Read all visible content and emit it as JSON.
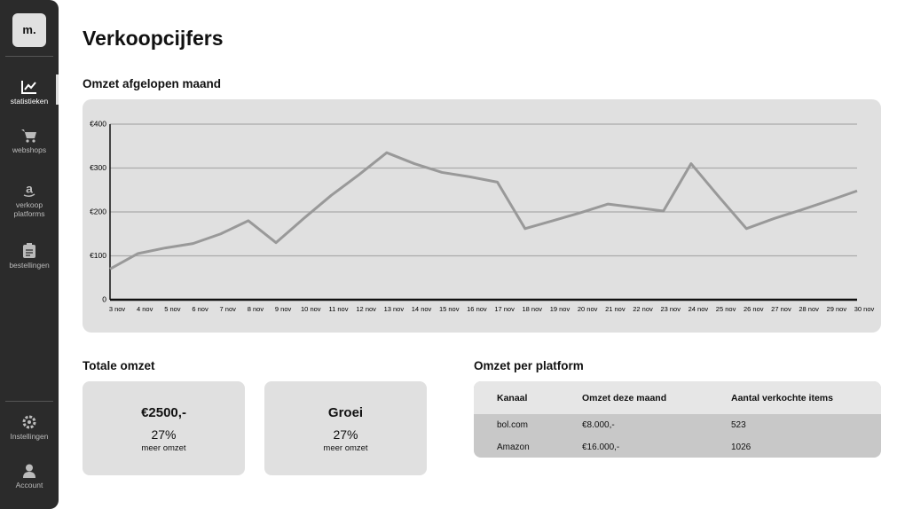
{
  "sidebar": {
    "logo": "m.",
    "nav": [
      "statistieken",
      "webshops",
      "verkoop platforms",
      "bestellingen"
    ],
    "bottom": [
      "Instellingen",
      "Account"
    ]
  },
  "header": {
    "title": "Verkoopcijfers"
  },
  "chart_heading": "Omzet afgelopen maand",
  "chart_data": {
    "type": "line",
    "categories": [
      "3 nov",
      "4 nov",
      "5 nov",
      "6 nov",
      "7 nov",
      "8 nov",
      "9 nov",
      "10 nov",
      "11 nov",
      "12 nov",
      "13 nov",
      "14 nov",
      "15 nov",
      "16 nov",
      "17 nov",
      "18 nov",
      "19 nov",
      "20 nov",
      "21 nov",
      "22 nov",
      "23 nov",
      "24 nov",
      "25 nov",
      "26 nov",
      "27 nov",
      "28 nov",
      "29 nov",
      "30 nov"
    ],
    "values": [
      70,
      105,
      118,
      128,
      150,
      180,
      130,
      185,
      238,
      285,
      335,
      310,
      290,
      280,
      268,
      162,
      180,
      198,
      218,
      210,
      202,
      310,
      235,
      162,
      185,
      205,
      226,
      248
    ],
    "color": "#999999",
    "ylim": [
      0,
      400
    ],
    "yticks": [
      0,
      {
        "value": 100,
        "label": "€100"
      },
      {
        "value": 200,
        "label": "€200"
      },
      {
        "value": 300,
        "label": "€300"
      },
      {
        "value": 400,
        "label": "€400"
      }
    ],
    "grid": true
  },
  "totals": {
    "heading": "Totale omzet",
    "cards": [
      {
        "title": "€2500,-",
        "percent": "27%",
        "caption": "meer omzet"
      },
      {
        "title": "Groei",
        "percent": "27%",
        "caption": "meer omzet"
      }
    ]
  },
  "platforms": {
    "heading": "Omzet per platform",
    "table": {
      "header": [
        "Kanaal",
        "Omzet deze maand",
        "Aantal verkochte items"
      ],
      "rows": [
        [
          "bol.com",
          "€8.000,-",
          "523"
        ],
        [
          "Amazon",
          "€16.000,-",
          "1026"
        ]
      ]
    }
  }
}
